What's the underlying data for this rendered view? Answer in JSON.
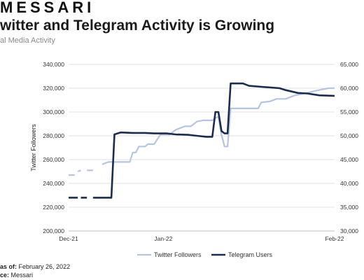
{
  "header": {
    "brand": "MESSARI",
    "title": "witter and Telegram Activity is Growing",
    "subtitle": "al Media Activity"
  },
  "footer": {
    "data_label": "as of:",
    "data_value": "February 26, 2022",
    "source_label": "ce:",
    "source_value": "Messari"
  },
  "colors": {
    "twitter": "#b4c5df",
    "telegram": "#1c2c4e",
    "grid": "#d9d9d9"
  },
  "chart_data": {
    "type": "line",
    "title": "witter and Telegram Activity is Growing",
    "subtitle": "al Media Activity",
    "ylabel": "Twitter Followers",
    "ylabel_right": "",
    "ylim": [
      200000,
      340000
    ],
    "ylim_right": [
      30000,
      65000
    ],
    "yticks_left": [
      "200,000",
      "220,000",
      "240,000",
      "260,000",
      "280,000",
      "300,000",
      "320,000",
      "340,000"
    ],
    "yticks_right": [
      "30,000",
      "35,000",
      "40,000",
      "45,000",
      "50,000",
      "55,000",
      "60,000",
      "65,000"
    ],
    "xlim": [
      "2021-12-01",
      "2022-02-26"
    ],
    "xticks": [
      {
        "date": "2021-12-01",
        "label": "Dec-21"
      },
      {
        "date": "2022-01-01",
        "label": "Jan-22"
      },
      {
        "date": "2022-02-26",
        "label": "Feb-22"
      }
    ],
    "grid": true,
    "legend": "bottom",
    "series": [
      {
        "name": "Twitter Followers",
        "axis": "left",
        "segments": [
          [
            [
              "2021-12-01",
              247000
            ],
            [
              "2021-12-03",
              247000
            ]
          ],
          [
            [
              "2021-12-04",
              250000
            ],
            [
              "2021-12-05",
              251000
            ]
          ],
          [
            [
              "2021-12-07",
              251000
            ],
            [
              "2021-12-09",
              251000
            ]
          ],
          [
            [
              "2021-12-12",
              256000
            ],
            [
              "2021-12-14",
              258000
            ],
            [
              "2021-12-18",
              258000
            ],
            [
              "2021-12-21",
              258000
            ],
            [
              "2021-12-22",
              266000
            ],
            [
              "2021-12-23",
              266000
            ],
            [
              "2021-12-24",
              271000
            ],
            [
              "2021-12-26",
              271000
            ],
            [
              "2021-12-27",
              273000
            ],
            [
              "2021-12-29",
              273000
            ],
            [
              "2021-12-31",
              281000
            ],
            [
              "2022-01-03",
              281000
            ],
            [
              "2022-01-05",
              285000
            ],
            [
              "2022-01-08",
              288000
            ],
            [
              "2022-01-10",
              288000
            ],
            [
              "2022-01-12",
              292000
            ],
            [
              "2022-01-14",
              293000
            ],
            [
              "2022-01-17",
              293000
            ],
            [
              "2022-01-18",
              295000
            ],
            [
              "2022-01-19",
              296000
            ],
            [
              "2022-01-20",
              281000
            ],
            [
              "2022-01-21",
              271000
            ],
            [
              "2022-01-22",
              271000
            ],
            [
              "2022-01-23",
              303000
            ],
            [
              "2022-01-27",
              303000
            ],
            [
              "2022-02-01",
              303000
            ],
            [
              "2022-02-02",
              308000
            ],
            [
              "2022-02-05",
              309000
            ],
            [
              "2022-02-07",
              311000
            ],
            [
              "2022-02-10",
              311000
            ],
            [
              "2022-02-13",
              314000
            ],
            [
              "2022-02-17",
              316000
            ],
            [
              "2022-02-20",
              318000
            ],
            [
              "2022-02-24",
              320000
            ],
            [
              "2022-02-26",
              320000
            ]
          ]
        ]
      },
      {
        "name": "Telegram Users",
        "axis": "right",
        "segments": [
          [
            [
              "2021-12-01",
              37000
            ],
            [
              "2021-12-04",
              37000
            ]
          ],
          [
            [
              "2021-12-05",
              37000
            ],
            [
              "2021-12-07",
              37000
            ]
          ],
          [
            [
              "2021-12-09",
              37000
            ],
            [
              "2021-12-15",
              37000
            ],
            [
              "2021-12-16",
              50300
            ],
            [
              "2021-12-18",
              50700
            ],
            [
              "2021-12-22",
              50600
            ],
            [
              "2021-12-26",
              50600
            ],
            [
              "2021-12-29",
              50500
            ],
            [
              "2022-01-02",
              50500
            ],
            [
              "2022-01-05",
              50300
            ],
            [
              "2022-01-09",
              50200
            ],
            [
              "2022-01-12",
              50000
            ],
            [
              "2022-01-15",
              49800
            ],
            [
              "2022-01-17",
              49800
            ],
            [
              "2022-01-18",
              55000
            ],
            [
              "2022-01-19",
              55000
            ],
            [
              "2022-01-20",
              51000
            ],
            [
              "2022-01-21",
              50500
            ],
            [
              "2022-01-22",
              50500
            ],
            [
              "2022-01-23",
              61000
            ],
            [
              "2022-01-27",
              61000
            ],
            [
              "2022-01-29",
              60500
            ],
            [
              "2022-02-02",
              60300
            ],
            [
              "2022-02-08",
              60000
            ],
            [
              "2022-02-10",
              59600
            ],
            [
              "2022-02-14",
              59000
            ],
            [
              "2022-02-17",
              58900
            ],
            [
              "2022-02-21",
              58500
            ],
            [
              "2022-02-26",
              58400
            ]
          ]
        ]
      }
    ]
  }
}
